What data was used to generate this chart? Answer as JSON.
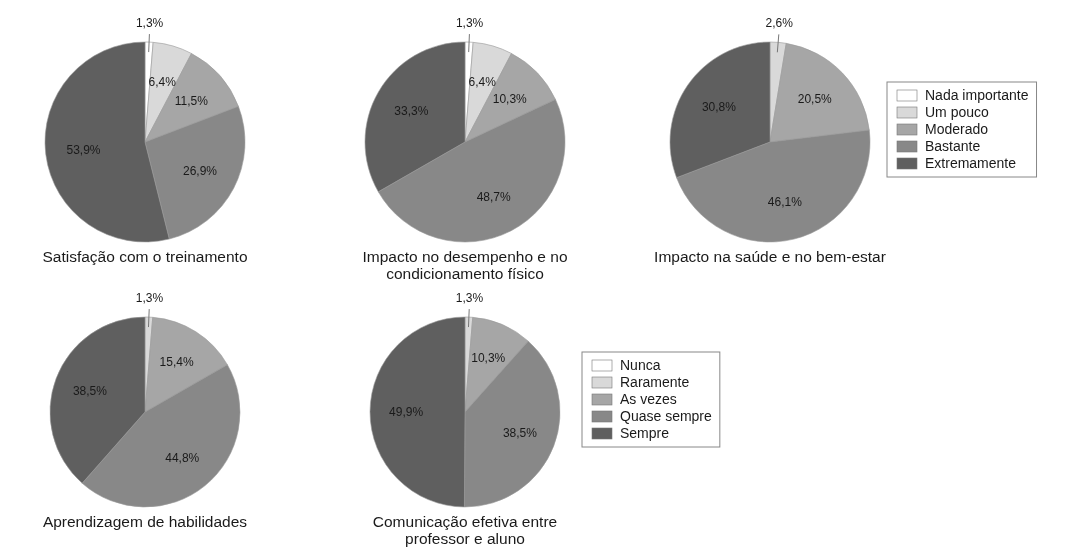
{
  "chart_data": [
    {
      "type": "pie",
      "title": "Satisfação com o treinamento",
      "categories": [
        null,
        null,
        null,
        null,
        null
      ],
      "values": [
        1.3,
        6.4,
        11.5,
        26.9,
        53.9
      ],
      "colors": [
        "#ffffff",
        "#d9d9d9",
        "#a6a6a6",
        "#888888",
        "#5f5f5f"
      ],
      "value_labels": [
        "1,3%",
        "6,4%",
        "11,5%",
        "26,9%",
        "53,9%"
      ],
      "legend": false
    },
    {
      "type": "pie",
      "title": "Impacto no desempenho e no condicionamento físico",
      "categories": [
        null,
        null,
        null,
        null,
        null
      ],
      "values": [
        1.3,
        6.4,
        10.3,
        48.7,
        33.3
      ],
      "colors": [
        "#ffffff",
        "#d9d9d9",
        "#a6a6a6",
        "#888888",
        "#5f5f5f"
      ],
      "value_labels": [
        "1,3%",
        "6,4%",
        "10,3%",
        "48,7%",
        "33,3%"
      ],
      "legend": false
    },
    {
      "type": "pie",
      "title": "Impacto na saúde e no bem-estar",
      "categories": [
        "Nada importante",
        "Um pouco",
        "Moderado",
        "Bastante",
        "Extremamente"
      ],
      "values": [
        0,
        2.6,
        20.5,
        46.1,
        30.8
      ],
      "colors": [
        "#ffffff",
        "#d9d9d9",
        "#a6a6a6",
        "#888888",
        "#5f5f5f"
      ],
      "value_labels": [
        null,
        "2,6%",
        "20,5%",
        "46,1%",
        "30,8%"
      ],
      "legend": "right"
    },
    {
      "type": "pie",
      "title": "Aprendizagem de habilidades",
      "categories": [
        null,
        null,
        null,
        null,
        null
      ],
      "values": [
        0,
        1.3,
        15.4,
        44.8,
        38.5
      ],
      "colors": [
        "#ffffff",
        "#d9d9d9",
        "#a6a6a6",
        "#888888",
        "#5f5f5f"
      ],
      "value_labels": [
        null,
        "1,3%",
        "15,4%",
        "44,8%",
        "38,5%"
      ],
      "legend": false
    },
    {
      "type": "pie",
      "title": "Comunicação efetiva entre professor e aluno",
      "categories": [
        "Nunca",
        "Raramente",
        "As vezes",
        "Quase sempre",
        "Sempre"
      ],
      "values": [
        0,
        1.3,
        10.3,
        38.5,
        49.9
      ],
      "colors": [
        "#ffffff",
        "#d9d9d9",
        "#a6a6a6",
        "#888888",
        "#5f5f5f"
      ],
      "value_labels": [
        null,
        "1,3%",
        "10,3%",
        "38,5%",
        "49,9%"
      ],
      "legend": "right"
    }
  ]
}
